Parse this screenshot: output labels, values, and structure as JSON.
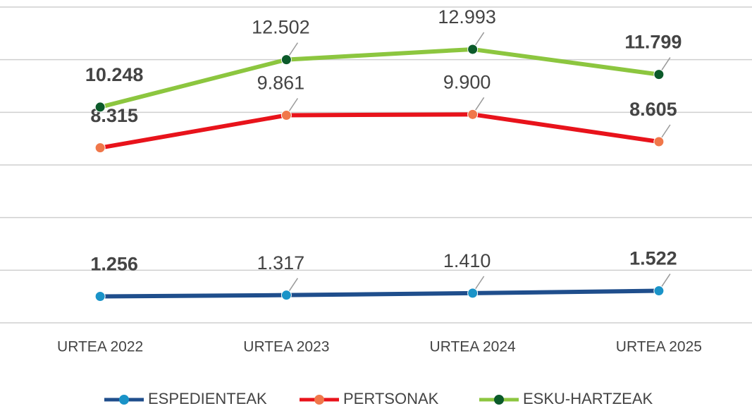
{
  "chart_data": {
    "type": "line",
    "categories": [
      "URTEA 2022",
      "URTEA 2023",
      "URTEA 2024",
      "URTEA 2025"
    ],
    "series": [
      {
        "name": "ESPEDIENTEAK",
        "color": "#1f4e8c",
        "marker_color": "#1a93c8",
        "values": [
          1256,
          1317,
          1410,
          1522
        ],
        "value_labels": [
          "1.256",
          "1.317",
          "1.410",
          "1.522"
        ]
      },
      {
        "name": "PERTSONAK",
        "color": "#e8131b",
        "marker_color": "#f0774a",
        "values": [
          8315,
          9861,
          9900,
          8605
        ],
        "value_labels": [
          "8.315",
          "9.861",
          "9.900",
          "8.605"
        ]
      },
      {
        "name": "ESKU-HARTZEAK",
        "color": "#8cc63f",
        "marker_color": "#0b5a2a",
        "values": [
          10248,
          12502,
          12993,
          11799
        ],
        "value_labels": [
          "10.248",
          "12.502",
          "12.993",
          "11.799"
        ]
      }
    ],
    "ylim": [
      0,
      15000
    ],
    "yticks": [
      0,
      2500,
      5000,
      7500,
      10000,
      12500,
      15000
    ],
    "grid": true
  }
}
